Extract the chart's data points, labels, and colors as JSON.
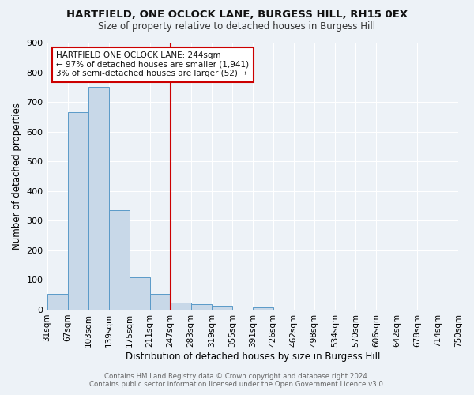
{
  "title1": "HARTFIELD, ONE OCLOCK LANE, BURGESS HILL, RH15 0EX",
  "title2": "Size of property relative to detached houses in Burgess Hill",
  "xlabel": "Distribution of detached houses by size in Burgess Hill",
  "ylabel": "Number of detached properties",
  "annotation_title": "HARTFIELD ONE OCLOCK LANE: 244sqm",
  "annotation_line1": "← 97% of detached houses are smaller (1,941)",
  "annotation_line2": "3% of semi-detached houses are larger (52) →",
  "footer1": "Contains HM Land Registry data © Crown copyright and database right 2024.",
  "footer2": "Contains public sector information licensed under the Open Government Licence v3.0.",
  "bin_labels": [
    "31sqm",
    "67sqm",
    "103sqm",
    "139sqm",
    "175sqm",
    "211sqm",
    "247sqm",
    "283sqm",
    "319sqm",
    "355sqm",
    "391sqm",
    "426sqm",
    "462sqm",
    "498sqm",
    "534sqm",
    "570sqm",
    "606sqm",
    "642sqm",
    "678sqm",
    "714sqm",
    "750sqm"
  ],
  "bar_values": [
    52,
    665,
    750,
    335,
    108,
    52,
    25,
    18,
    14,
    0,
    8,
    0,
    0,
    0,
    0,
    0,
    0,
    0,
    0,
    0
  ],
  "bar_color": "#c8d8e8",
  "bar_edge_color": "#5a9ac8",
  "vline_x": 6,
  "vline_color": "#cc0000",
  "ylim": [
    0,
    900
  ],
  "yticks": [
    0,
    100,
    200,
    300,
    400,
    500,
    600,
    700,
    800,
    900
  ],
  "background_color": "#edf2f7",
  "grid_color": "#ffffff",
  "annotation_box_color": "#ffffff",
  "annotation_box_edge": "#cc0000"
}
